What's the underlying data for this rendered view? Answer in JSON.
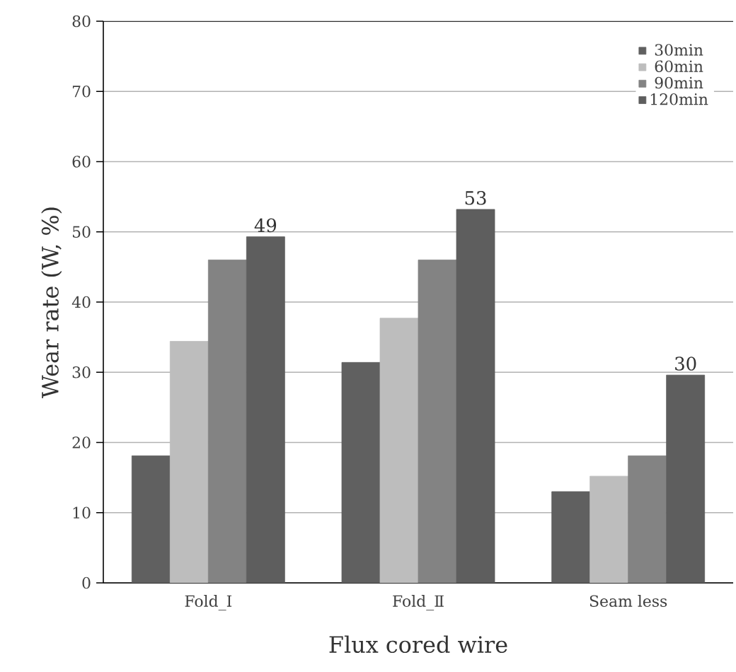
{
  "chart_data": {
    "type": "bar",
    "xlabel": "Flux cored wire",
    "ylabel": "Wear rate (W, %)",
    "categories": [
      "Fold_Ⅰ",
      "Fold_Ⅱ",
      "Seam less"
    ],
    "series": [
      {
        "name": "30min",
        "color": "#606060",
        "values": [
          18.1,
          31.4,
          13.0
        ]
      },
      {
        "name": "60min",
        "color": "#bdbdbd",
        "values": [
          34.4,
          37.7,
          15.2
        ]
      },
      {
        "name": "90min",
        "color": "#838383",
        "values": [
          46.0,
          46.0,
          18.1
        ]
      },
      {
        "name": "120min",
        "color": "#5e5e5e",
        "values": [
          49.3,
          53.2,
          29.6
        ],
        "value_labels": [
          "49",
          "53",
          "30"
        ]
      }
    ],
    "ylim": [
      0,
      80
    ],
    "yticks": [
      0,
      10,
      20,
      30,
      40,
      50,
      60,
      70,
      80
    ],
    "grid": "y",
    "legend": "top right"
  }
}
